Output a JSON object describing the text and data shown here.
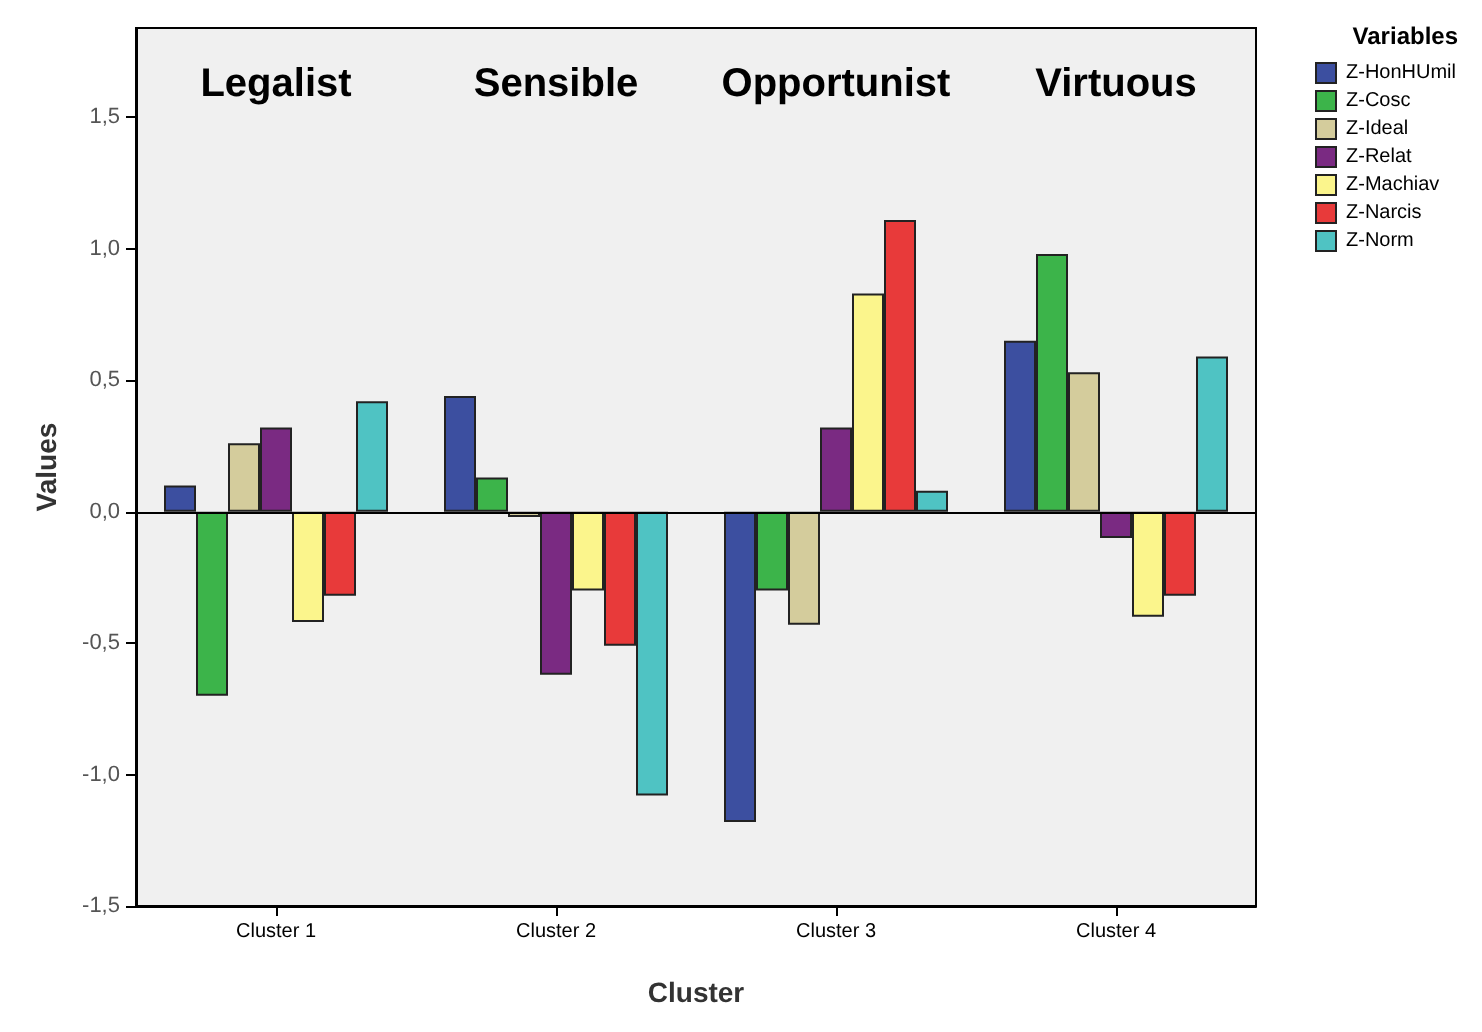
{
  "chart_data": {
    "type": "bar",
    "xlabel": "Cluster",
    "ylabel": "Values",
    "legend_title": "Variables",
    "legend": "top right",
    "grid": false,
    "categories": [
      "Cluster 1",
      "Cluster 2",
      "Cluster 3",
      "Cluster 4"
    ],
    "ylim": [
      -1.5,
      1.84
    ],
    "yticks": [
      {
        "value": -1.5,
        "label": "-1,5"
      },
      {
        "value": -1,
        "label": "-1,0"
      },
      {
        "value": -0.5,
        "label": "-0,5"
      },
      {
        "value": 0,
        "label": "0,0"
      },
      {
        "value": 0.5,
        "label": "0,5"
      },
      {
        "value": 1,
        "label": "1,0"
      },
      {
        "value": 1.5,
        "label": "1,5"
      }
    ],
    "annotations": [
      "Legalist",
      "Sensible",
      "Opportunist",
      "Virtuous"
    ],
    "ref_lines": [
      {
        "axis": "y",
        "value": 0,
        "color": "#000000"
      }
    ],
    "series": [
      {
        "name": "Z-HonHUmil",
        "color": "#3c4fa0",
        "values": [
          0.1,
          0.44,
          -1.18,
          0.65
        ]
      },
      {
        "name": "Z-Cosc",
        "color": "#3cb44a",
        "values": [
          -0.7,
          0.13,
          -0.3,
          0.98
        ]
      },
      {
        "name": "Z-Ideal",
        "color": "#d4cc9c",
        "values": [
          0.26,
          -0.02,
          -0.43,
          0.53
        ]
      },
      {
        "name": "Z-Relat",
        "color": "#7a2a82",
        "values": [
          0.32,
          -0.62,
          0.32,
          -0.1
        ]
      },
      {
        "name": "Z-Machiav",
        "color": "#fbf58c",
        "values": [
          -0.42,
          -0.3,
          0.83,
          -0.4
        ]
      },
      {
        "name": "Z-Narcis",
        "color": "#e83a3a",
        "values": [
          -0.32,
          -0.51,
          1.11,
          -0.32
        ]
      },
      {
        "name": "Z-Norm",
        "color": "#4fc3c3",
        "values": [
          0.42,
          -1.08,
          0.08,
          0.59
        ]
      }
    ]
  }
}
